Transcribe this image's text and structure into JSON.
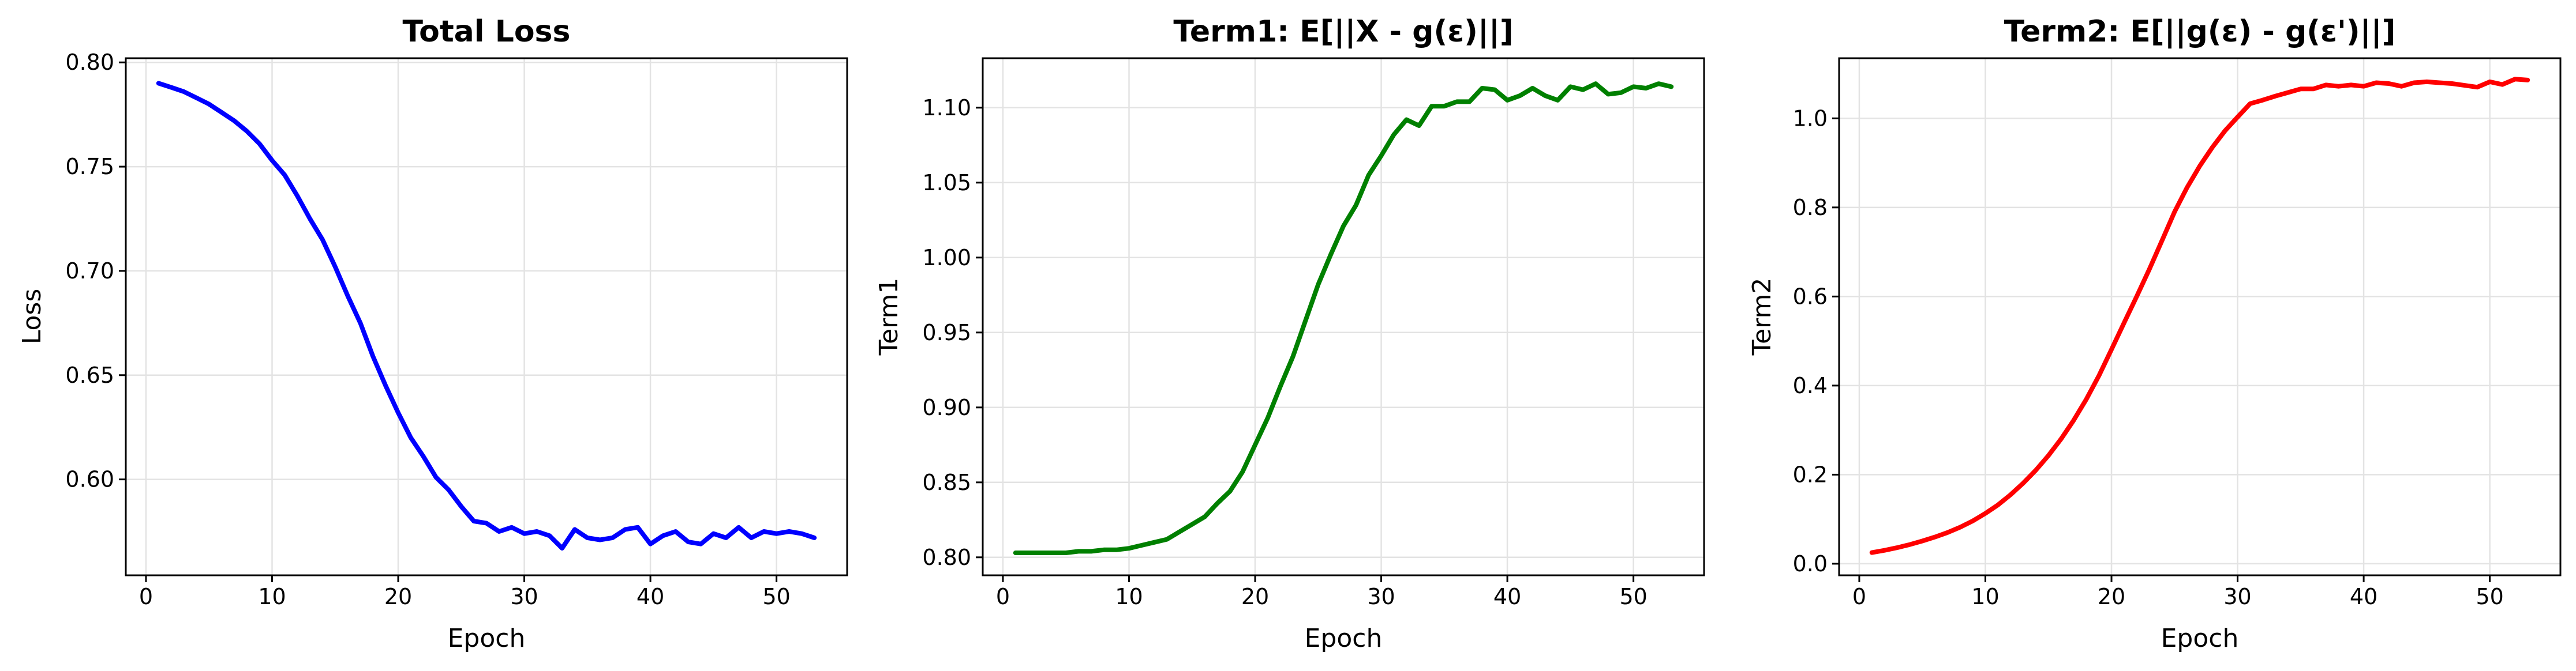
{
  "chart_data": [
    {
      "type": "line",
      "title": "Total Loss",
      "xlabel": "Epoch",
      "ylabel": "Loss",
      "xlim": [
        -1.6,
        55.6
      ],
      "ylim": [
        0.554,
        0.802
      ],
      "xticks": [
        0,
        10,
        20,
        30,
        40,
        50
      ],
      "yticks": [
        0.6,
        0.65,
        0.7,
        0.75,
        0.8
      ],
      "ytick_decimals": 2,
      "grid": true,
      "series": [
        {
          "name": "Total Loss",
          "color": "#0000ff",
          "x": [
            1,
            2,
            3,
            4,
            5,
            6,
            7,
            8,
            9,
            10,
            11,
            12,
            13,
            14,
            15,
            16,
            17,
            18,
            19,
            20,
            21,
            22,
            23,
            24,
            25,
            26,
            27,
            28,
            29,
            30,
            31,
            32,
            33,
            34,
            35,
            36,
            37,
            38,
            39,
            40,
            41,
            42,
            43,
            44,
            45,
            46,
            47,
            48,
            49,
            50,
            51,
            52,
            53
          ],
          "values": [
            0.79,
            0.788,
            0.786,
            0.783,
            0.78,
            0.776,
            0.772,
            0.767,
            0.761,
            0.753,
            0.746,
            0.736,
            0.725,
            0.715,
            0.702,
            0.688,
            0.675,
            0.659,
            0.645,
            0.632,
            0.62,
            0.611,
            0.601,
            0.595,
            0.587,
            0.58,
            0.579,
            0.575,
            0.577,
            0.574,
            0.575,
            0.573,
            0.567,
            0.576,
            0.572,
            0.571,
            0.572,
            0.576,
            0.577,
            0.569,
            0.573,
            0.575,
            0.57,
            0.569,
            0.574,
            0.572,
            0.577,
            0.572,
            0.575,
            0.574,
            0.575,
            0.574,
            0.572
          ]
        }
      ]
    },
    {
      "type": "line",
      "title": "Term1: E[||X - g(ε)||]",
      "xlabel": "Epoch",
      "ylabel": "Term1",
      "xlim": [
        -1.6,
        55.6
      ],
      "ylim": [
        0.788,
        1.133
      ],
      "xticks": [
        0,
        10,
        20,
        30,
        40,
        50
      ],
      "yticks": [
        0.8,
        0.85,
        0.9,
        0.95,
        1.0,
        1.05,
        1.1
      ],
      "ytick_decimals": 2,
      "grid": true,
      "series": [
        {
          "name": "Term1",
          "color": "#008000",
          "x": [
            1,
            2,
            3,
            4,
            5,
            6,
            7,
            8,
            9,
            10,
            11,
            12,
            13,
            14,
            15,
            16,
            17,
            18,
            19,
            20,
            21,
            22,
            23,
            24,
            25,
            26,
            27,
            28,
            29,
            30,
            31,
            32,
            33,
            34,
            35,
            36,
            37,
            38,
            39,
            40,
            41,
            42,
            43,
            44,
            45,
            46,
            47,
            48,
            49,
            50,
            51,
            52,
            53
          ],
          "values": [
            0.803,
            0.803,
            0.803,
            0.803,
            0.803,
            0.804,
            0.804,
            0.805,
            0.805,
            0.806,
            0.808,
            0.81,
            0.812,
            0.817,
            0.822,
            0.827,
            0.836,
            0.844,
            0.857,
            0.875,
            0.893,
            0.914,
            0.934,
            0.958,
            0.982,
            1.002,
            1.021,
            1.035,
            1.055,
            1.068,
            1.082,
            1.092,
            1.088,
            1.101,
            1.101,
            1.104,
            1.104,
            1.113,
            1.112,
            1.105,
            1.108,
            1.113,
            1.108,
            1.105,
            1.114,
            1.112,
            1.116,
            1.109,
            1.11,
            1.114,
            1.113,
            1.116,
            1.114
          ]
        }
      ]
    },
    {
      "type": "line",
      "title": "Term2: E[||g(ε) - g(ε')||]",
      "xlabel": "Epoch",
      "ylabel": "Term2",
      "xlim": [
        -1.6,
        55.6
      ],
      "ylim": [
        -0.026,
        1.135
      ],
      "xticks": [
        0,
        10,
        20,
        30,
        40,
        50
      ],
      "yticks": [
        0.0,
        0.2,
        0.4,
        0.6,
        0.8,
        1.0
      ],
      "ytick_decimals": 1,
      "grid": true,
      "series": [
        {
          "name": "Term2",
          "color": "#ff0000",
          "x": [
            1,
            2,
            3,
            4,
            5,
            6,
            7,
            8,
            9,
            10,
            11,
            12,
            13,
            14,
            15,
            16,
            17,
            18,
            19,
            20,
            21,
            22,
            23,
            24,
            25,
            26,
            27,
            28,
            29,
            30,
            31,
            32,
            33,
            34,
            35,
            36,
            37,
            38,
            39,
            40,
            41,
            42,
            43,
            44,
            45,
            46,
            47,
            48,
            49,
            50,
            51,
            52,
            53
          ],
          "values": [
            0.025,
            0.03,
            0.036,
            0.043,
            0.051,
            0.06,
            0.07,
            0.082,
            0.096,
            0.113,
            0.132,
            0.155,
            0.181,
            0.21,
            0.243,
            0.28,
            0.322,
            0.369,
            0.422,
            0.481,
            0.541,
            0.6,
            0.661,
            0.725,
            0.79,
            0.845,
            0.893,
            0.935,
            0.972,
            1.003,
            1.033,
            1.041,
            1.05,
            1.058,
            1.066,
            1.066,
            1.075,
            1.072,
            1.075,
            1.072,
            1.08,
            1.078,
            1.072,
            1.08,
            1.082,
            1.08,
            1.078,
            1.074,
            1.07,
            1.082,
            1.076,
            1.088,
            1.086
          ]
        }
      ]
    }
  ]
}
